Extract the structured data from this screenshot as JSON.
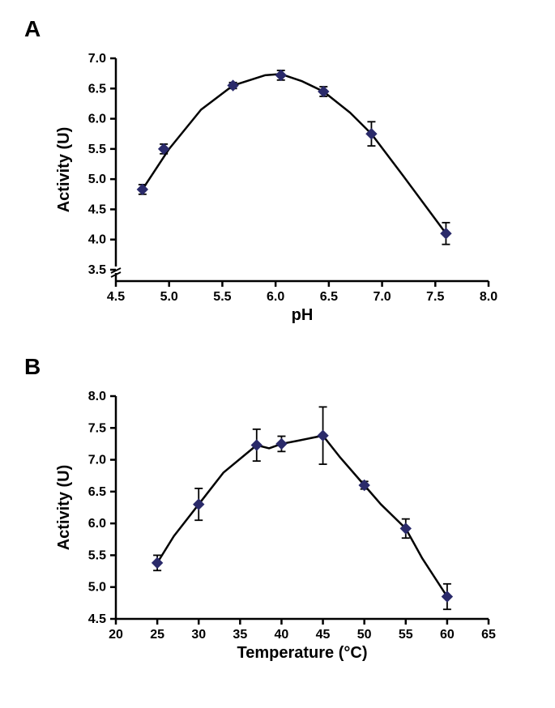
{
  "panels": {
    "A": {
      "label": "A",
      "type": "scatter-line",
      "xlabel": "pH",
      "ylabel": "Activity (U)",
      "label_fontsize": 20,
      "tick_fontsize": 16,
      "xlim": [
        4.5,
        8.0
      ],
      "xticks": [
        4.5,
        5.0,
        5.5,
        6.0,
        6.5,
        7.0,
        7.5,
        8.0
      ],
      "ylim": [
        3.2,
        7.0
      ],
      "yticks": [
        3.5,
        4.0,
        4.5,
        5.0,
        5.5,
        6.0,
        6.5,
        7.0
      ],
      "axis_break_y": 3.5,
      "marker_style": "diamond",
      "marker_size": 9,
      "marker_color": "#2a2a6a",
      "line_color": "#000000",
      "line_width": 2,
      "errorbar_color": "#000000",
      "background_color": "#ffffff",
      "axis_color": "#000000",
      "axis_width": 2.5,
      "data": [
        {
          "x": 4.75,
          "y": 4.83,
          "err": 0.08
        },
        {
          "x": 4.95,
          "y": 5.5,
          "err": 0.08
        },
        {
          "x": 5.6,
          "y": 6.55,
          "err": 0.05
        },
        {
          "x": 6.05,
          "y": 6.72,
          "err": 0.08
        },
        {
          "x": 6.45,
          "y": 6.45,
          "err": 0.08
        },
        {
          "x": 6.9,
          "y": 5.75,
          "err": 0.2
        },
        {
          "x": 7.6,
          "y": 4.1,
          "err": 0.18
        }
      ],
      "curve": [
        {
          "x": 4.75,
          "y": 4.83
        },
        {
          "x": 5.0,
          "y": 5.5
        },
        {
          "x": 5.3,
          "y": 6.15
        },
        {
          "x": 5.6,
          "y": 6.55
        },
        {
          "x": 5.9,
          "y": 6.72
        },
        {
          "x": 6.05,
          "y": 6.74
        },
        {
          "x": 6.25,
          "y": 6.62
        },
        {
          "x": 6.45,
          "y": 6.45
        },
        {
          "x": 6.7,
          "y": 6.1
        },
        {
          "x": 6.9,
          "y": 5.75
        },
        {
          "x": 7.2,
          "y": 5.05
        },
        {
          "x": 7.6,
          "y": 4.1
        }
      ]
    },
    "B": {
      "label": "B",
      "type": "scatter-line",
      "xlabel": "Temperature (°C)",
      "ylabel": "Activity (U)",
      "label_fontsize": 20,
      "tick_fontsize": 16,
      "xlim": [
        20,
        65
      ],
      "xticks": [
        20,
        25,
        30,
        35,
        40,
        45,
        50,
        55,
        60,
        65
      ],
      "ylim": [
        4.5,
        8.0
      ],
      "yticks": [
        4.5,
        5.0,
        5.5,
        6.0,
        6.5,
        7.0,
        7.5,
        8.0
      ],
      "marker_style": "diamond",
      "marker_size": 9,
      "marker_color": "#2a2a6a",
      "line_color": "#000000",
      "line_width": 2,
      "errorbar_color": "#000000",
      "background_color": "#ffffff",
      "axis_color": "#000000",
      "axis_width": 2.5,
      "data": [
        {
          "x": 25,
          "y": 5.38,
          "err": 0.12
        },
        {
          "x": 30,
          "y": 6.3,
          "err": 0.25
        },
        {
          "x": 37,
          "y": 7.23,
          "err": 0.25
        },
        {
          "x": 40,
          "y": 7.25,
          "err": 0.12
        },
        {
          "x": 45,
          "y": 7.38,
          "err": 0.45
        },
        {
          "x": 50,
          "y": 6.6,
          "err": 0.06
        },
        {
          "x": 55,
          "y": 5.92,
          "err": 0.15
        },
        {
          "x": 60,
          "y": 4.85,
          "err": 0.2
        }
      ],
      "curve": [
        {
          "x": 25,
          "y": 5.38
        },
        {
          "x": 27,
          "y": 5.8
        },
        {
          "x": 30,
          "y": 6.3
        },
        {
          "x": 33,
          "y": 6.8
        },
        {
          "x": 37,
          "y": 7.23
        },
        {
          "x": 38.5,
          "y": 7.18
        },
        {
          "x": 40,
          "y": 7.25
        },
        {
          "x": 42,
          "y": 7.3
        },
        {
          "x": 45,
          "y": 7.38
        },
        {
          "x": 47,
          "y": 7.05
        },
        {
          "x": 50,
          "y": 6.6
        },
        {
          "x": 52,
          "y": 6.3
        },
        {
          "x": 55,
          "y": 5.92
        },
        {
          "x": 57,
          "y": 5.45
        },
        {
          "x": 60,
          "y": 4.85
        }
      ]
    }
  }
}
